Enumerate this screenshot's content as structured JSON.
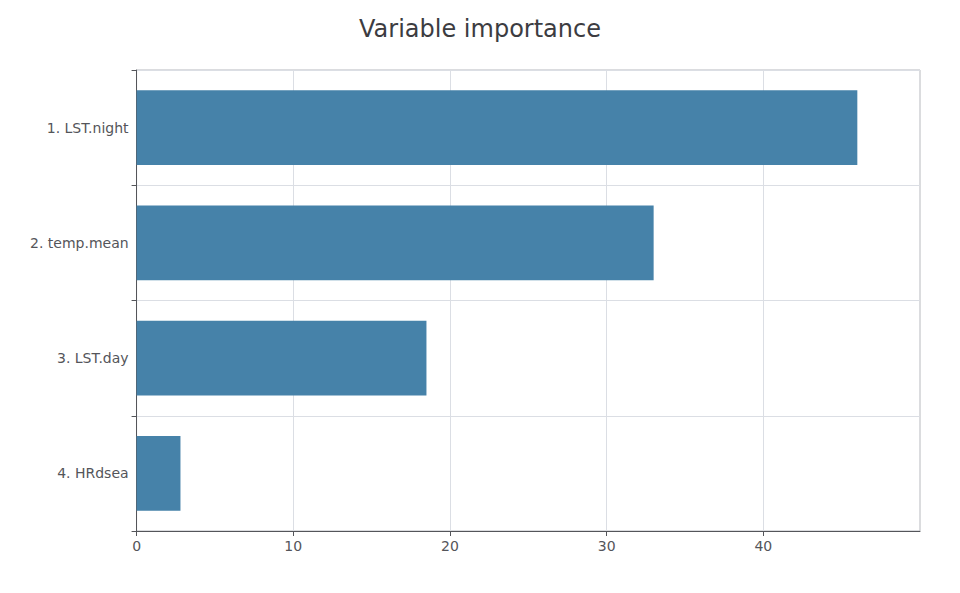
{
  "chart_data": {
    "type": "bar",
    "orientation": "horizontal",
    "title": "Variable importance",
    "categories": [
      "1. LST.night",
      "2. temp.mean",
      "3. LST.day",
      "4. HRdsea"
    ],
    "values": [
      46.0,
      33.0,
      18.5,
      2.8
    ],
    "color": "#4682a9",
    "xlim": [
      0,
      50
    ],
    "xticks": [
      0,
      10,
      20,
      30,
      40
    ],
    "grid": true
  }
}
